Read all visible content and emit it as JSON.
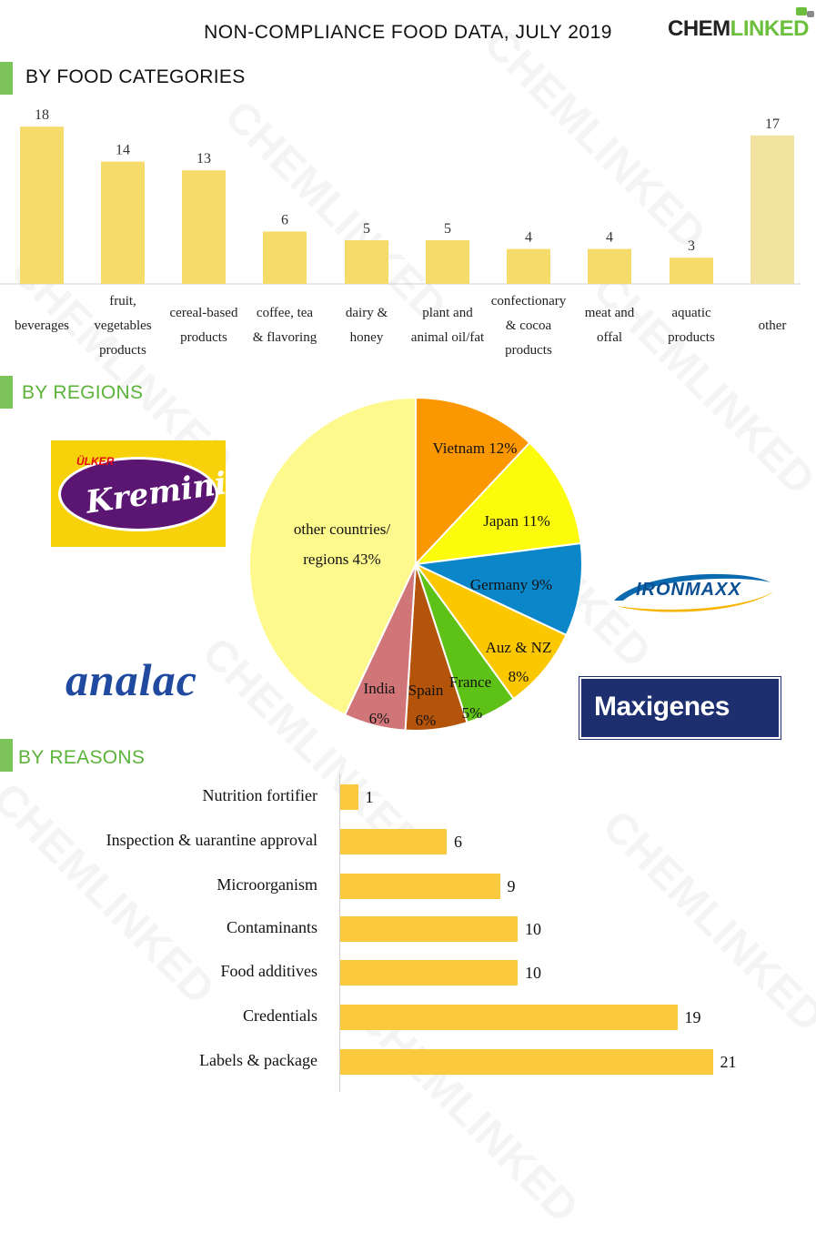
{
  "header": {
    "title": "NON-COMPLIANCE FOOD DATA, JULY 2019",
    "brand_part1": "CHEM",
    "brand_part2": "LINKED"
  },
  "watermark_text": "CHEMLINKED",
  "sections": {
    "categories_title": "BY FOOD CATEGORIES",
    "regions_title": "BY REGIONS",
    "reasons_title": "BY REASONS"
  },
  "logos": {
    "kremini_brand": "ÜLKER",
    "kremini_name": "Kremini",
    "ironmaxx": "IRONMAXX",
    "analac": "analac",
    "maxigenes": "Maxigenes"
  },
  "colors": {
    "bar_yellow": "#f5dc6a",
    "bar_other": "#f2e4a0",
    "reason_bar": "#fbc93d",
    "section_green": "#7cc45a"
  },
  "chart_data": [
    {
      "type": "bar",
      "categories": [
        "beverages",
        "fruit, vegetables products",
        "cereal-based products",
        "coffee, tea & flavoring",
        "dairy & honey",
        "plant and animal oil/fat",
        "confectionary & cocoa products",
        "meat and offal",
        "aquatic products",
        "other"
      ],
      "category_lines": [
        [
          "beverages"
        ],
        [
          "fruit,",
          "vegetables",
          "products"
        ],
        [
          "cereal-based",
          "products"
        ],
        [
          "coffee, tea",
          "& flavoring"
        ],
        [
          "dairy &",
          "honey"
        ],
        [
          "plant and",
          "animal oil/fat"
        ],
        [
          "confectionary",
          "& cocoa",
          "products"
        ],
        [
          "meat and",
          "offal"
        ],
        [
          "aquatic",
          "products"
        ],
        [
          "other"
        ]
      ],
      "values": [
        18,
        14,
        13,
        6,
        5,
        5,
        4,
        4,
        3,
        17
      ],
      "ylim": [
        0,
        20
      ]
    },
    {
      "type": "pie",
      "slices": [
        {
          "label": "Vietnam",
          "value": 12,
          "text": "Vietnam 12%",
          "color": "#fb9700"
        },
        {
          "label": "Japan",
          "value": 11,
          "text": "Japan 11%",
          "color": "#fcfb0c"
        },
        {
          "label": "Germany",
          "value": 9,
          "text": "Germany 9%",
          "color": "#0a86c9"
        },
        {
          "label": "Auz & NZ",
          "value": 8,
          "text1": "Auz & NZ",
          "text2": "8%",
          "color": "#fbc800"
        },
        {
          "label": "France",
          "value": 5,
          "text1": "France",
          "text2": "5%",
          "color": "#5ec216"
        },
        {
          "label": "Spain",
          "value": 6,
          "text1": "Spain",
          "text2": "6%",
          "color": "#b4530a"
        },
        {
          "label": "India",
          "value": 6,
          "text1": "India",
          "text2": "6%",
          "color": "#d17678"
        },
        {
          "label": "other countries/ regions",
          "value": 43,
          "text1": "other countries/",
          "text2": "regions  43%",
          "color": "#fdf98d"
        }
      ]
    },
    {
      "type": "bar",
      "orientation": "horizontal",
      "categories": [
        "Nutrition fortifier",
        "Inspection & uarantine approval",
        "Microorganism",
        "Contaminants",
        "Food additives",
        "Credentials",
        "Labels & package"
      ],
      "values": [
        1,
        6,
        9,
        10,
        10,
        19,
        21
      ],
      "xlim": [
        0,
        21
      ]
    }
  ]
}
